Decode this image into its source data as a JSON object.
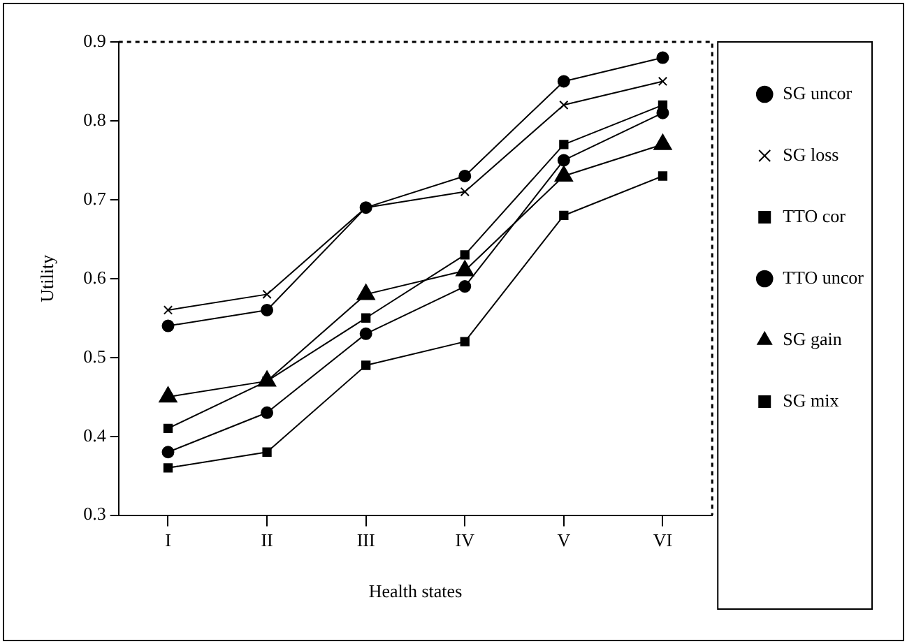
{
  "chart_data": {
    "type": "line",
    "xlabel": "Health states",
    "ylabel": "Utility",
    "categories": [
      "I",
      "II",
      "III",
      "IV",
      "V",
      "VI"
    ],
    "ylim": [
      0.3,
      0.9
    ],
    "yticks": [
      0.3,
      0.4,
      0.5,
      0.6,
      0.7,
      0.8,
      0.9
    ],
    "grid": false,
    "legend": "right",
    "line_style": "solid",
    "series": [
      {
        "name": "SG uncor",
        "color": "#000000",
        "marker": "circle",
        "values": [
          0.54,
          0.56,
          0.69,
          0.73,
          0.85,
          0.88
        ]
      },
      {
        "name": "SG loss",
        "color": "#000000",
        "marker": "cross",
        "values": [
          0.56,
          0.58,
          0.69,
          0.71,
          0.82,
          0.85
        ]
      },
      {
        "name": "TTO cor",
        "color": "#000000",
        "marker": "square",
        "values": [
          0.41,
          0.47,
          0.55,
          0.63,
          0.77,
          0.82
        ]
      },
      {
        "name": "TTO uncor",
        "color": "#000000",
        "marker": "circle",
        "values": [
          0.38,
          0.43,
          0.53,
          0.59,
          0.75,
          0.81
        ]
      },
      {
        "name": "SG gain",
        "color": "#000000",
        "marker": "triangle",
        "values": [
          0.45,
          0.47,
          0.58,
          0.61,
          0.73,
          0.77
        ]
      },
      {
        "name": "SG mix",
        "color": "#000000",
        "marker": "square",
        "values": [
          0.36,
          0.38,
          0.49,
          0.52,
          0.68,
          0.73
        ]
      }
    ]
  }
}
